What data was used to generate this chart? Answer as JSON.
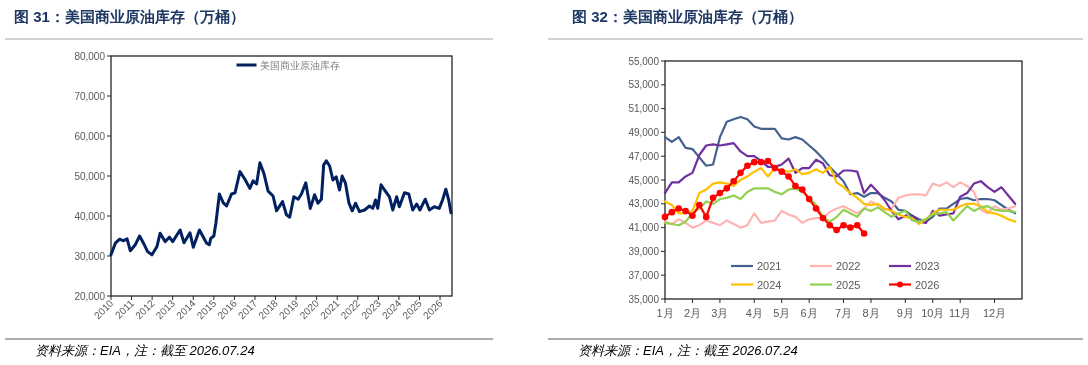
{
  "chart_data": [
    {
      "type": "line",
      "title": "图 31：美国商业原油库存（万桶）",
      "annotations": [
        "资料来源：EIA，注：截至 2026.07.24"
      ],
      "legend": "top",
      "grid": false,
      "xlim": [
        2010,
        2026.58
      ],
      "xticks": [
        2010,
        2011,
        2012,
        2013,
        2014,
        2015,
        2016,
        2017,
        2018,
        2019,
        2020,
        2021,
        2022,
        2023,
        2024,
        2025,
        2026
      ],
      "ylim": [
        20000,
        80000
      ],
      "yticks": [
        {
          "value": 20000,
          "label": "20,000"
        },
        {
          "value": 30000,
          "label": "30,000"
        },
        {
          "value": 40000,
          "label": "40,000"
        },
        {
          "value": 50000,
          "label": "50,000"
        },
        {
          "value": 60000,
          "label": "60,000"
        },
        {
          "value": 70000,
          "label": "70,000"
        },
        {
          "value": 80000,
          "label": "80,000"
        }
      ],
      "series": [
        {
          "name": "美国商业原油库存",
          "color": "#002060",
          "x": [
            2010.0,
            2010.21,
            2010.42,
            2010.61,
            2010.78,
            2010.94,
            2011.18,
            2011.39,
            2011.58,
            2011.78,
            2011.99,
            2012.23,
            2012.39,
            2012.63,
            2012.84,
            2013.0,
            2013.36,
            2013.55,
            2013.84,
            2014.0,
            2014.3,
            2014.65,
            2014.78,
            2014.85,
            2015.0,
            2015.1,
            2015.27,
            2015.46,
            2015.62,
            2015.86,
            2016.03,
            2016.27,
            2016.51,
            2016.75,
            2016.91,
            2017.08,
            2017.24,
            2017.43,
            2017.64,
            2017.88,
            2018.05,
            2018.34,
            2018.53,
            2018.69,
            2018.89,
            2019.1,
            2019.26,
            2019.47,
            2019.69,
            2019.9,
            2020.06,
            2020.23,
            2020.34,
            2020.47,
            2020.63,
            2020.79,
            2020.95,
            2021.11,
            2021.24,
            2021.4,
            2021.57,
            2021.73,
            2021.89,
            2022.08,
            2022.33,
            2022.57,
            2022.73,
            2022.86,
            2022.97,
            2023.13,
            2023.3,
            2023.54,
            2023.7,
            2023.89,
            2024.02,
            2024.27,
            2024.48,
            2024.67,
            2024.86,
            2025.02,
            2025.28,
            2025.48,
            2025.72,
            2025.96,
            2026.12,
            2026.28,
            2026.42,
            2026.53
          ],
          "values": [
            30300,
            33200,
            34200,
            33800,
            34300,
            31300,
            32800,
            35000,
            33200,
            31100,
            30300,
            32300,
            35700,
            33600,
            34700,
            33600,
            36500,
            33300,
            35800,
            32200,
            36500,
            33200,
            32800,
            34400,
            35000,
            38200,
            45500,
            43300,
            42500,
            45500,
            45800,
            51100,
            49200,
            46900,
            48800,
            48000,
            53300,
            50700,
            46200,
            45000,
            41300,
            43600,
            40300,
            39700,
            44800,
            44200,
            45500,
            48300,
            41900,
            45300,
            43200,
            44200,
            52800,
            53800,
            52500,
            49000,
            49800,
            46500,
            50000,
            48200,
            43200,
            41300,
            43200,
            41100,
            41500,
            42500,
            41900,
            44000,
            41900,
            47800,
            46500,
            44800,
            41500,
            44800,
            42300,
            45800,
            45500,
            41500,
            43000,
            41500,
            44200,
            41500,
            42300,
            41900,
            44000,
            46700,
            44000,
            40800
          ]
        }
      ]
    },
    {
      "type": "line",
      "title": "图 32：美国商业原油库存（万桶）",
      "annotations": [
        "资料来源：EIA，注：截至 2026.07.24"
      ],
      "legend": "bottom",
      "grid": false,
      "categories": [
        "1月",
        null,
        null,
        null,
        "2月",
        null,
        null,
        null,
        "3月",
        null,
        null,
        null,
        null,
        "4月",
        null,
        null,
        null,
        "5月",
        null,
        null,
        null,
        "6月",
        null,
        null,
        null,
        null,
        "7月",
        null,
        null,
        null,
        "8月",
        null,
        null,
        null,
        null,
        "9月",
        null,
        null,
        null,
        "10月",
        null,
        null,
        null,
        "11月",
        null,
        null,
        null,
        null,
        "12月",
        null,
        null,
        null
      ],
      "ylim": [
        35000,
        55000
      ],
      "yticks": [
        {
          "value": 35000,
          "label": "35,000"
        },
        {
          "value": 37000,
          "label": "37,000"
        },
        {
          "value": 39000,
          "label": "39,000"
        },
        {
          "value": 41000,
          "label": "41,000"
        },
        {
          "value": 43000,
          "label": "43,000"
        },
        {
          "value": 45000,
          "label": "45,000"
        },
        {
          "value": 47000,
          "label": "47,000"
        },
        {
          "value": 49000,
          "label": "49,000"
        },
        {
          "value": 51000,
          "label": "51,000"
        },
        {
          "value": 53000,
          "label": "53,000"
        },
        {
          "value": 55000,
          "label": "55,000"
        }
      ],
      "series": [
        {
          "name": "2021",
          "color": "#44618f",
          "values": [
            48600,
            48200,
            48600,
            47700,
            47600,
            46900,
            46200,
            46300,
            48600,
            49900,
            50100,
            50300,
            50100,
            49500,
            49300,
            49300,
            49300,
            48500,
            48400,
            48600,
            48400,
            47900,
            47400,
            46800,
            46100,
            45500,
            44900,
            43800,
            43900,
            43600,
            43900,
            43900,
            43500,
            43200,
            42500,
            42400,
            42000,
            41700,
            41500,
            41900,
            42600,
            42600,
            43000,
            43400,
            43500,
            43300,
            43400,
            43400,
            43300,
            42900,
            42500,
            42200
          ]
        },
        {
          "name": "2022",
          "color": "#ffb3b3",
          "values": [
            41500,
            41300,
            41700,
            41400,
            41000,
            41200,
            41600,
            41400,
            41200,
            41600,
            41300,
            41000,
            41200,
            42200,
            41400,
            41500,
            41600,
            42400,
            42100,
            41900,
            41400,
            41700,
            41800,
            41800,
            42300,
            42600,
            42800,
            42500,
            42200,
            42600,
            43200,
            42900,
            42500,
            42600,
            43500,
            43700,
            43800,
            43800,
            43700,
            44700,
            44500,
            44800,
            44400,
            44800,
            44500,
            44000,
            42500,
            42200,
            42800,
            42500,
            42600,
            42800
          ]
        },
        {
          "name": "2023",
          "color": "#7030a0",
          "values": [
            43900,
            44800,
            44800,
            45300,
            45600,
            47100,
            47900,
            48000,
            47900,
            48000,
            48100,
            47400,
            47000,
            47000,
            46600,
            46100,
            46100,
            46300,
            46800,
            45600,
            46000,
            46000,
            46700,
            46400,
            45400,
            45300,
            45800,
            45800,
            45700,
            43900,
            44600,
            44000,
            43300,
            42400,
            41700,
            42000,
            42000,
            41500,
            41400,
            42400,
            42000,
            42100,
            42200,
            43600,
            43900,
            44700,
            44900,
            44400,
            44000,
            44400,
            43700,
            43000
          ]
        },
        {
          "name": "2024",
          "color": "#ffc000",
          "values": [
            43200,
            42900,
            42200,
            42200,
            42400,
            43900,
            44200,
            44700,
            44800,
            44700,
            44500,
            45000,
            45300,
            45700,
            46000,
            45300,
            46000,
            45800,
            45700,
            45900,
            45500,
            45600,
            45900,
            45600,
            46100,
            44800,
            44400,
            43900,
            43500,
            43000,
            42900,
            43000,
            42600,
            42400,
            42100,
            41900,
            41800,
            41300,
            41700,
            42200,
            42500,
            42500,
            42500,
            42800,
            43000,
            43000,
            42800,
            42300,
            42200,
            42000,
            41700,
            41500
          ]
        },
        {
          "name": "2025",
          "color": "#92d050",
          "values": [
            41400,
            41300,
            41200,
            41500,
            42200,
            42600,
            43200,
            43000,
            43400,
            43500,
            43700,
            43400,
            44000,
            44300,
            44300,
            44300,
            44000,
            43800,
            44200,
            44300,
            44000,
            43500,
            42900,
            41900,
            41500,
            41900,
            42500,
            42200,
            41900,
            42600,
            42400,
            42700,
            42300,
            41900,
            42200,
            42400,
            41600,
            41500,
            41700,
            42100,
            42200,
            42300,
            41600,
            42200,
            42800,
            42400,
            42700,
            42800,
            42500,
            42400,
            42400,
            42300
          ]
        },
        {
          "name": "2026",
          "color": "#ff0000",
          "marker": "circle",
          "values": [
            41900,
            42300,
            42600,
            42400,
            42000,
            42900,
            41900,
            43500,
            43900,
            44300,
            44900,
            45600,
            46200,
            46500,
            46500,
            46600,
            46000,
            45700,
            45300,
            44500,
            44200,
            43400,
            42600,
            41800,
            41200,
            40800,
            41200,
            41000,
            41200,
            40500,
            null,
            null,
            null,
            null,
            null,
            null,
            null,
            null,
            null,
            null,
            null,
            null,
            null,
            null,
            null,
            null,
            null,
            null,
            null,
            null,
            null,
            null
          ]
        }
      ]
    }
  ]
}
